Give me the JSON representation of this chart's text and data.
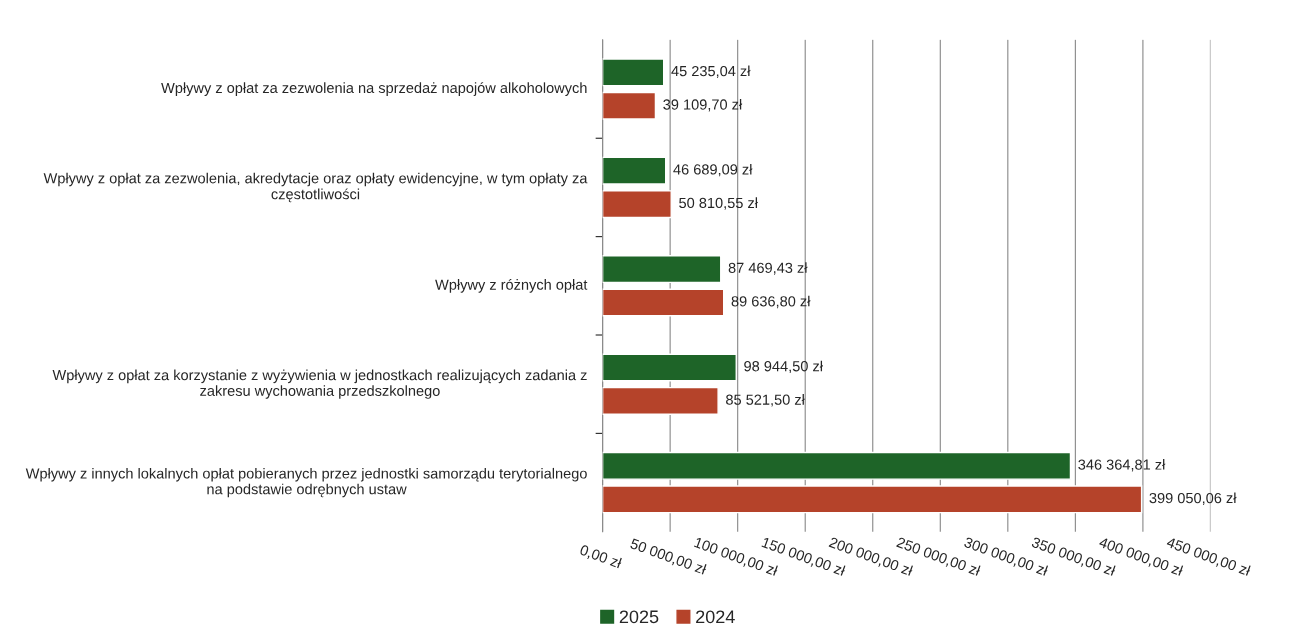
{
  "chart_data": {
    "type": "bar",
    "orientation": "horizontal",
    "categories": [
      "Wpływy z opłat za zezwolenia na sprzedaż napojów alkoholowych",
      "Wpływy z opłat za zezwolenia, akredytacje oraz opłaty ewidencyjne, w tym opłaty za\nczęstotliwości",
      "Wpływy z różnych opłat",
      "Wpływy z opłat za korzystanie z wyżywienia w jednostkach realizujących zadania z\nzakresu wychowania przedszkolnego",
      "Wpływy z innych lokalnych opłat pobieranych przez jednostki samorządu terytorialnego\nna podstawie odrębnych ustaw"
    ],
    "series": [
      {
        "name": "2025",
        "color": "#1e6428",
        "values": [
          45235.04,
          46689.09,
          87469.43,
          98944.5,
          346364.81
        ],
        "value_labels": [
          "45 235,04 zł",
          "46 689,09 zł",
          "87 469,43 zł",
          "98 944,50 zł",
          "346 364,81 zł"
        ]
      },
      {
        "name": "2024",
        "color": "#b5432a",
        "values": [
          39109.7,
          50810.55,
          89636.8,
          85521.5,
          399050.06
        ],
        "value_labels": [
          "39 109,70 zł",
          "50 810,55 zł",
          "89 636,80 zł",
          "85 521,50 zł",
          "399 050,06 zł"
        ]
      }
    ],
    "xlim": [
      0,
      450000
    ],
    "xticks": [
      {
        "value": 0,
        "label": "0,00 zł"
      },
      {
        "value": 50000,
        "label": "50 000,00 zł"
      },
      {
        "value": 100000,
        "label": "100 000,00 zł"
      },
      {
        "value": 150000,
        "label": "150 000,00 zł"
      },
      {
        "value": 200000,
        "label": "200 000,00 zł"
      },
      {
        "value": 250000,
        "label": "250 000,00 zł"
      },
      {
        "value": 300000,
        "label": "300 000,00 zł"
      },
      {
        "value": 350000,
        "label": "350 000,00 zł"
      },
      {
        "value": 400000,
        "label": "400 000,00 zł"
      },
      {
        "value": 450000,
        "label": "450 000,00 zł"
      }
    ],
    "grid": "x",
    "legend": "bottom"
  }
}
